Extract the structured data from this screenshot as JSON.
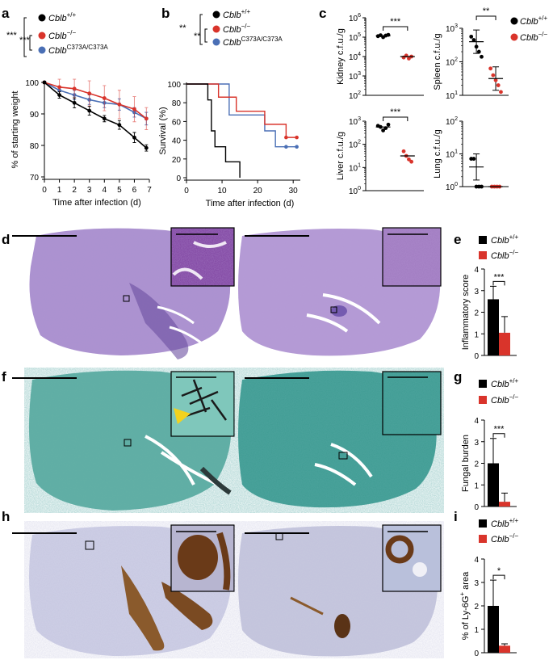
{
  "panels": {
    "a": "a",
    "b": "b",
    "c": "c",
    "d": "d",
    "e": "e",
    "f": "f",
    "g": "g",
    "h": "h",
    "i": "i"
  },
  "genotypes": {
    "wt_base": "Cblb",
    "wt_sup": "+/+",
    "ko_base": "Cblb",
    "ko_sup": "−/−",
    "mut_base": "Cblb",
    "mut_sup": "C373A/C373A"
  },
  "colors": {
    "wt": "#000000",
    "ko": "#d9342b",
    "mut": "#4a6fb5",
    "ko_bar": "#d9342b",
    "pas_bg": "#9b80c4",
    "gms_bg": "#3f9c93",
    "ihc_bg": "#c7c8de"
  },
  "chart_data": [
    {
      "id": "a",
      "type": "line",
      "xlabel": "Time after infection (d)",
      "ylabel": "% of starting weight",
      "xlim": [
        0,
        7
      ],
      "ylim": [
        70,
        100
      ],
      "xticks": [
        0,
        1,
        2,
        3,
        4,
        5,
        6,
        7
      ],
      "yticks": [
        70,
        80,
        90,
        100
      ],
      "significance": [
        "***",
        "***"
      ],
      "x": [
        0,
        1,
        2,
        3,
        4,
        5,
        6,
        6.8
      ],
      "series": [
        {
          "key": "wt",
          "values": [
            100,
            96,
            93.5,
            91,
            88.5,
            86.5,
            82.5,
            79.2
          ],
          "err": [
            0.3,
            1,
            1.6,
            1.4,
            1,
            1.4,
            1.6,
            1
          ]
        },
        {
          "key": "ko",
          "values": [
            100,
            98.5,
            98,
            96.5,
            95,
            93,
            91.5,
            88.5
          ],
          "err": [
            0.3,
            2.5,
            3,
            4,
            4,
            4.5,
            4,
            3.5
          ]
        },
        {
          "key": "mut",
          "values": [
            100,
            97.5,
            96,
            94.5,
            93.5,
            93,
            90.5,
            88.5
          ],
          "err": [
            0.3,
            1.2,
            1.5,
            1.5,
            1.5,
            1.8,
            1.5,
            2
          ]
        }
      ]
    },
    {
      "id": "b",
      "type": "line",
      "xlabel": "Time after infection (d)",
      "ylabel": "Survival (%)",
      "xlim": [
        0,
        32
      ],
      "ylim": [
        0,
        100
      ],
      "xticks": [
        0,
        10,
        20,
        30
      ],
      "yticks": [
        0,
        20,
        40,
        60,
        80,
        100
      ],
      "significance": [
        "**",
        "**"
      ],
      "series": [
        {
          "key": "wt",
          "steps": [
            [
              0,
              100
            ],
            [
              6,
              100
            ],
            [
              6,
              83
            ],
            [
              7,
              83
            ],
            [
              7,
              50
            ],
            [
              8,
              50
            ],
            [
              8,
              33
            ],
            [
              11,
              33
            ],
            [
              11,
              17
            ],
            [
              15,
              17
            ],
            [
              15,
              0
            ]
          ],
          "censor": []
        },
        {
          "key": "ko",
          "steps": [
            [
              0,
              100
            ],
            [
              9,
              100
            ],
            [
              9,
              86
            ],
            [
              14,
              86
            ],
            [
              14,
              71
            ],
            [
              22,
              71
            ],
            [
              22,
              57
            ],
            [
              28,
              57
            ],
            [
              28,
              43
            ],
            [
              31,
              43
            ]
          ],
          "censor": [
            [
              28,
              43
            ],
            [
              31,
              43
            ]
          ]
        },
        {
          "key": "mut",
          "steps": [
            [
              0,
              100
            ],
            [
              12,
              100
            ],
            [
              12,
              67
            ],
            [
              22,
              67
            ],
            [
              22,
              50
            ],
            [
              25,
              50
            ],
            [
              25,
              33
            ],
            [
              31,
              33
            ]
          ],
          "censor": [
            [
              28,
              33
            ],
            [
              31,
              33
            ]
          ]
        }
      ]
    },
    {
      "id": "c-kidney",
      "type": "scatter",
      "ylabel": "Kidney c.f.u./g",
      "ylog": true,
      "ylim_exp": [
        2,
        6
      ],
      "ytick_exp": [
        2,
        3,
        4,
        5,
        6
      ],
      "significance": "***",
      "groups": [
        {
          "key": "wt",
          "points_log10": [
            5.05,
            5.1,
            5.0,
            5.08,
            5.12
          ],
          "mean_log10": 5.07
        },
        {
          "key": "ko",
          "points_log10": [
            3.95,
            4.05,
            3.9,
            4.0
          ],
          "mean_log10": 4.0
        }
      ]
    },
    {
      "id": "c-spleen",
      "type": "scatter",
      "ylabel": "Spleen c.f.u./g",
      "ylog": true,
      "ylim_exp": [
        1,
        3
      ],
      "ytick_exp": [
        1,
        2,
        3
      ],
      "significance": "**",
      "groups": [
        {
          "key": "wt",
          "points_log10": [
            2.75,
            2.65,
            2.45,
            2.3,
            2.15
          ],
          "mean_log10": 2.6,
          "err": 0.35
        },
        {
          "key": "ko",
          "points_log10": [
            1.8,
            1.6,
            1.45,
            1.3,
            1.1
          ],
          "mean_log10": 1.5,
          "err": 0.35
        }
      ]
    },
    {
      "id": "c-liver",
      "type": "scatter",
      "ylabel": "Liver c.f.u./g",
      "ylog": true,
      "ylim_exp": [
        0,
        3
      ],
      "ytick_exp": [
        0,
        1,
        2,
        3
      ],
      "significance": "***",
      "groups": [
        {
          "key": "wt",
          "points_log10": [
            2.8,
            2.75,
            2.6,
            2.7,
            2.85
          ],
          "mean_log10": 2.75
        },
        {
          "key": "ko",
          "points_log10": [
            1.7,
            1.5,
            1.35,
            1.25
          ],
          "mean_log10": 1.5
        }
      ]
    },
    {
      "id": "c-lung",
      "type": "scatter",
      "ylabel": "Lung c.f.u./g",
      "ylog": true,
      "ylim_exp": [
        0,
        2
      ],
      "ytick_exp": [
        0,
        1,
        2
      ],
      "significance": "",
      "groups": [
        {
          "key": "wt",
          "points_log10": [
            0.85,
            0.85,
            0,
            0,
            0
          ],
          "mean_log10": 0.6,
          "err": 0.4
        },
        {
          "key": "ko",
          "points_log10": [
            0,
            0,
            0,
            0
          ],
          "mean_log10": 0
        }
      ]
    },
    {
      "id": "e",
      "type": "bar",
      "ylabel": "Inflammatory score",
      "ylim": [
        0,
        4
      ],
      "yticks": [
        0,
        1,
        2,
        3,
        4
      ],
      "significance": "***",
      "bars": [
        {
          "key": "wt",
          "value": 2.6,
          "err": 0.6
        },
        {
          "key": "ko",
          "value": 1.05,
          "err": 0.75
        }
      ]
    },
    {
      "id": "g",
      "type": "bar",
      "ylabel": "Fungal burden",
      "ylim": [
        0,
        4
      ],
      "yticks": [
        0,
        1,
        2,
        3,
        4
      ],
      "significance": "***",
      "bars": [
        {
          "key": "wt",
          "value": 2.0,
          "err": 1.15
        },
        {
          "key": "ko",
          "value": 0.22,
          "err": 0.4
        }
      ]
    },
    {
      "id": "i",
      "type": "bar",
      "ylabel_base": "% of Ly-6G",
      "ylabel_sup": "+",
      "ylabel_tail": " area",
      "ylim": [
        0,
        4
      ],
      "yticks": [
        0,
        1,
        2,
        3,
        4
      ],
      "significance": "*",
      "bars": [
        {
          "key": "wt",
          "value": 2.0,
          "err": 1.1
        },
        {
          "key": "ko",
          "value": 0.3,
          "err": 0.08
        }
      ]
    }
  ]
}
